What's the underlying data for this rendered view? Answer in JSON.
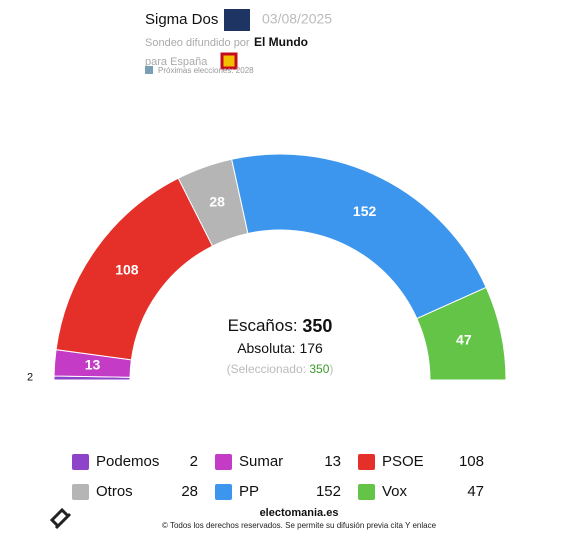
{
  "header": {
    "pollster": "Sigma Dos",
    "date": "03/08/2025",
    "published_by_label": "Sondeo difundido por",
    "media": "El Mundo",
    "region": "para España",
    "next_elections": "Próximas elecciones: 2028"
  },
  "chart_data": {
    "type": "parliament",
    "categories": [
      "Podemos",
      "Sumar",
      "PSOE",
      "Otros",
      "PP",
      "Vox"
    ],
    "values": [
      2,
      13,
      108,
      28,
      152,
      47
    ],
    "colors": [
      "#8e44c8",
      "#c43bc6",
      "#e5302a",
      "#b5b5b5",
      "#3d96ee",
      "#63c447"
    ],
    "seats_label": "Escaños:",
    "seats_total": 350,
    "majority_label": "Absoluta:",
    "majority": 176,
    "selected_prefix": "(Seleccionado:",
    "selected": 350,
    "selected_suffix": ")"
  },
  "footer": {
    "site": "electomania.es",
    "rights": "© Todos los derechos reservados. Se permite su difusión previa cita Y enlace"
  }
}
